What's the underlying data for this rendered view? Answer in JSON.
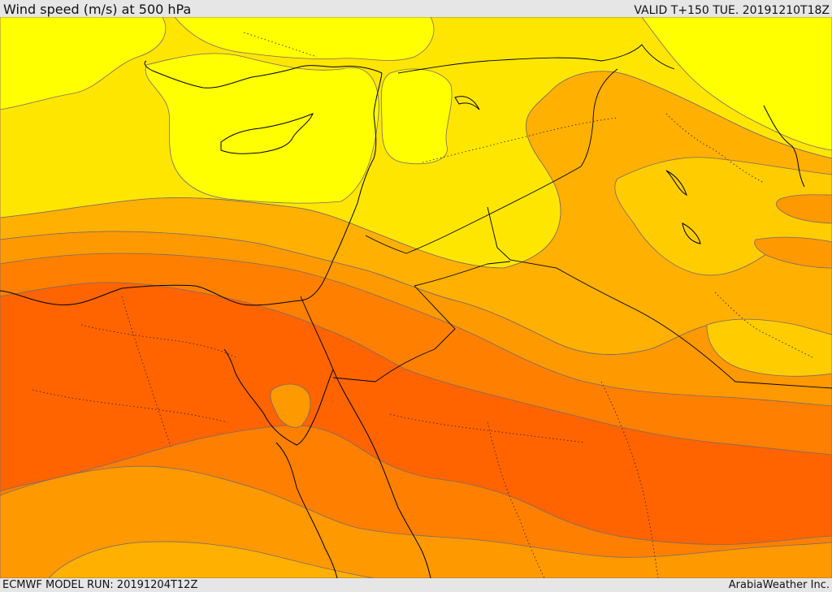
{
  "header": {
    "title": "Wind speed (m/s) at 500 hPa",
    "valid": "VALID T+150 TUE. 20191210T18Z"
  },
  "footer": {
    "model_run": "ECMWF MODEL RUN: 20191204T12Z",
    "credit": "ArabiaWeather Inc."
  },
  "colors": {
    "band_lightest": "#ffff00",
    "band_light": "#ffe600",
    "band_mid": "#ffcc00",
    "band_orange_light": "#ffb000",
    "band_orange": "#ff9900",
    "band_orange_dark": "#ff8000",
    "band_red": "#ff6400",
    "contour": "#7a6a66",
    "coast": "#000000"
  }
}
